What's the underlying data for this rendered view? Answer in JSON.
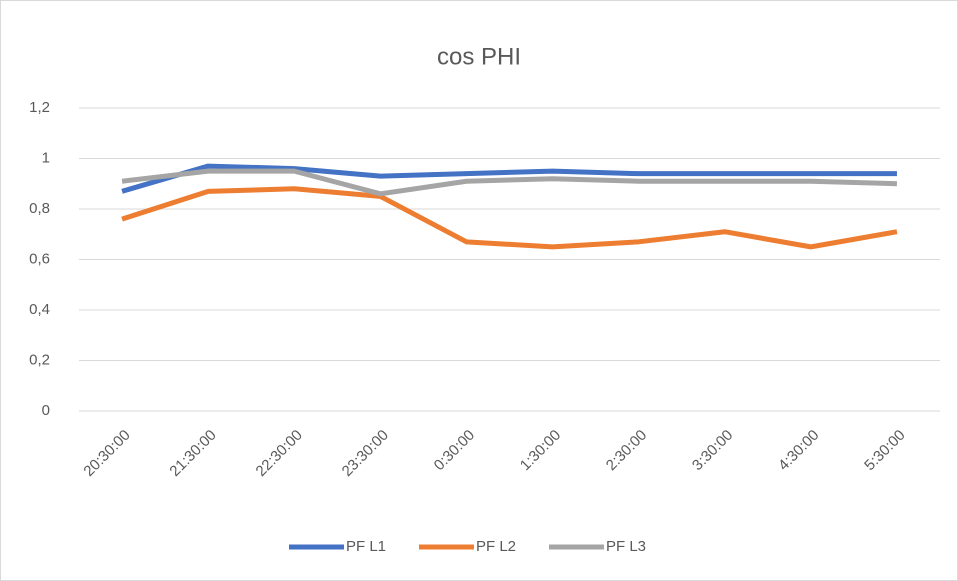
{
  "chart_data": {
    "type": "line",
    "title": "cos PHI",
    "categories": [
      "20:30:00",
      "21:30:00",
      "22:30:00",
      "23:30:00",
      "0:30:00",
      "1:30:00",
      "2:30:00",
      "3:30:00",
      "4:30:00",
      "5:30:00"
    ],
    "series": [
      {
        "name": "PF L1",
        "color": "#4472c4",
        "values": [
          0.87,
          0.97,
          0.96,
          0.93,
          0.94,
          0.95,
          0.94,
          0.94,
          0.94,
          0.94
        ]
      },
      {
        "name": "PF L2",
        "color": "#ed7d31",
        "values": [
          0.76,
          0.87,
          0.88,
          0.85,
          0.67,
          0.65,
          0.67,
          0.71,
          0.65,
          0.71
        ]
      },
      {
        "name": "PF L3",
        "color": "#a5a5a5",
        "values": [
          0.91,
          0.95,
          0.95,
          0.86,
          0.91,
          0.92,
          0.91,
          0.91,
          0.91,
          0.9
        ]
      }
    ],
    "ylim": [
      0,
      1.2
    ],
    "yticks": [
      0,
      {
        "value": 0.2,
        "label": "0,2"
      },
      {
        "value": 0.4,
        "label": "0,4"
      },
      {
        "value": 0.6,
        "label": "0,6"
      },
      {
        "value": 0.8,
        "label": "0,8"
      },
      1,
      {
        "value": 1.2,
        "label": "1,2"
      }
    ],
    "grid": true,
    "legend": "bottom"
  }
}
